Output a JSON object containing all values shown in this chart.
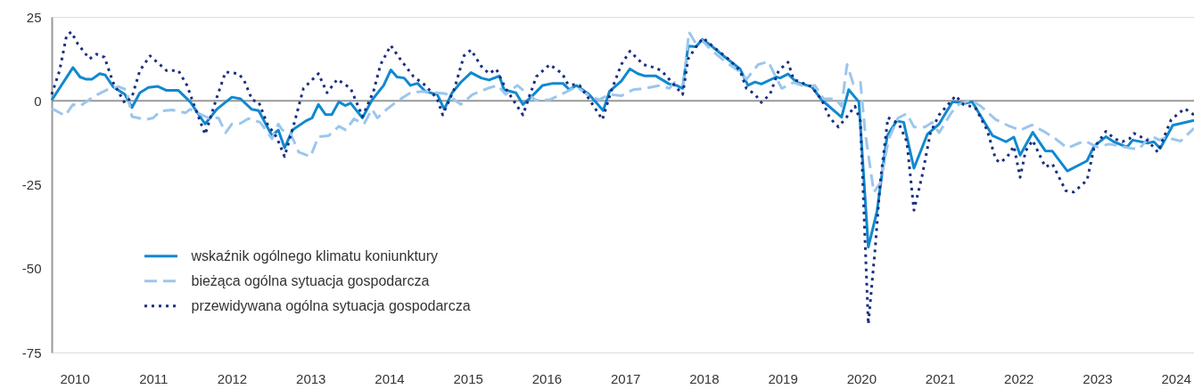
{
  "chart_data": {
    "type": "line",
    "xlim": [
      2010,
      2024.52
    ],
    "ylim": [
      -75,
      25
    ],
    "xticks": [
      {
        "value": 2010.29,
        "label": "2010"
      },
      {
        "value": 2011.29,
        "label": "2011"
      },
      {
        "value": 2012.29,
        "label": "2012"
      },
      {
        "value": 2013.29,
        "label": "2013"
      },
      {
        "value": 2014.29,
        "label": "2014"
      },
      {
        "value": 2015.29,
        "label": "2015"
      },
      {
        "value": 2016.29,
        "label": "2016"
      },
      {
        "value": 2017.29,
        "label": "2017"
      },
      {
        "value": 2018.29,
        "label": "2018"
      },
      {
        "value": 2019.29,
        "label": "2019"
      },
      {
        "value": 2020.29,
        "label": "2020"
      },
      {
        "value": 2021.29,
        "label": "2021"
      },
      {
        "value": 2022.29,
        "label": "2022"
      },
      {
        "value": 2023.29,
        "label": "2023"
      },
      {
        "value": 2024.29,
        "label": "2024"
      }
    ],
    "yticks": [
      -75,
      -50,
      -25,
      0,
      25
    ],
    "legend": "bottom left",
    "ref_lines": [
      {
        "axis": "y",
        "value": 0,
        "color": "#999999"
      }
    ],
    "series": [
      {
        "name": "wskaźnik ogólnego klimatu koniunktury",
        "color": "#1089cf",
        "line_style": "solid",
        "x": [
          2010.0,
          2010.27,
          2010.36,
          2010.44,
          2010.51,
          2010.61,
          2010.68,
          2010.78,
          2010.93,
          2011.02,
          2011.12,
          2011.23,
          2011.35,
          2011.46,
          2011.61,
          2011.76,
          2011.95,
          2012.1,
          2012.29,
          2012.4,
          2012.54,
          2012.63,
          2012.8,
          2012.88,
          2012.96,
          2013.06,
          2013.23,
          2013.31,
          2013.39,
          2013.48,
          2013.56,
          2013.65,
          2013.73,
          2013.8,
          2013.95,
          2014.07,
          2014.22,
          2014.31,
          2014.39,
          2014.48,
          2014.56,
          2014.65,
          2014.75,
          2014.9,
          2014.99,
          2015.09,
          2015.2,
          2015.33,
          2015.46,
          2015.56,
          2015.69,
          2015.75,
          2015.9,
          2015.99,
          2016.11,
          2016.24,
          2016.37,
          2016.5,
          2016.58,
          2016.67,
          2016.83,
          2017.01,
          2017.09,
          2017.24,
          2017.35,
          2017.45,
          2017.54,
          2017.68,
          2017.85,
          2017.94,
          2018.02,
          2018.09,
          2018.19,
          2018.27,
          2018.38,
          2018.56,
          2018.75,
          2018.85,
          2018.94,
          2019.02,
          2019.21,
          2019.26,
          2019.36,
          2019.47,
          2019.66,
          2019.79,
          2020.04,
          2020.13,
          2020.26,
          2020.38,
          2020.49,
          2020.62,
          2020.74,
          2020.83,
          2020.96,
          2021.13,
          2021.28,
          2021.45,
          2021.62,
          2021.7,
          2021.96,
          2022.13,
          2022.23,
          2022.31,
          2022.47,
          2022.63,
          2022.72,
          2022.91,
          2023.16,
          2023.25,
          2023.4,
          2023.5,
          2023.67,
          2023.74,
          2023.93,
          2024.01,
          2024.09,
          2024.25,
          2024.52
        ],
        "values": [
          0.2,
          9.9,
          7.1,
          6.4,
          6.4,
          8.1,
          7.7,
          4.2,
          1.9,
          -2.0,
          2.4,
          4.0,
          4.3,
          3.1,
          3.1,
          -0.3,
          -6.9,
          -2.5,
          1.1,
          0.6,
          -2.5,
          -2.9,
          -10.4,
          -8.7,
          -14.0,
          -8.7,
          -6.0,
          -5.1,
          -1.1,
          -4.1,
          -4.1,
          -0.3,
          -1.4,
          -0.7,
          -5.1,
          0.2,
          4.6,
          9.2,
          7.1,
          6.8,
          4.6,
          5.2,
          2.8,
          1.9,
          -2.5,
          2.4,
          5.5,
          8.4,
          6.8,
          6.2,
          7.4,
          3.3,
          2.4,
          -1.1,
          1.5,
          4.6,
          5.2,
          5.2,
          3.3,
          4.6,
          1.9,
          -2.9,
          2.8,
          5.9,
          9.5,
          8.1,
          7.4,
          7.4,
          5.0,
          4.6,
          3.7,
          16.3,
          16.1,
          18.3,
          16.5,
          13.0,
          9.5,
          4.6,
          5.6,
          5.0,
          7.1,
          6.8,
          8.0,
          5.5,
          4.2,
          0.2,
          -4.9,
          3.3,
          -0.3,
          -43.6,
          -33.0,
          -10.4,
          -6.0,
          -6.4,
          -20.1,
          -10.0,
          -6.9,
          -0.3,
          -0.7,
          -0.3,
          -10.4,
          -12.2,
          -10.8,
          -16.2,
          -9.4,
          -14.9,
          -15.0,
          -20.9,
          -17.9,
          -13.5,
          -10.7,
          -12.2,
          -13.8,
          -11.7,
          -12.6,
          -12.2,
          -14.2,
          -7.3,
          -5.8
        ]
      },
      {
        "name": "bieżąca ogólna sytuacja gospodarcza",
        "color": "#9cc6ec",
        "line_style": "dashed",
        "x": [
          2010.0,
          2010.17,
          2010.27,
          2010.36,
          2010.55,
          2010.74,
          2010.85,
          2010.95,
          2011.02,
          2011.19,
          2011.29,
          2011.38,
          2011.53,
          2011.7,
          2011.76,
          2011.99,
          2012.12,
          2012.21,
          2012.29,
          2012.4,
          2012.5,
          2012.65,
          2012.8,
          2012.88,
          2012.93,
          2013.03,
          2013.14,
          2013.29,
          2013.39,
          2013.52,
          2013.65,
          2013.74,
          2013.84,
          2013.97,
          2014.07,
          2014.14,
          2014.26,
          2014.41,
          2014.56,
          2014.71,
          2014.9,
          2015.01,
          2015.2,
          2015.35,
          2015.54,
          2015.67,
          2015.77,
          2015.92,
          2016.01,
          2016.15,
          2016.33,
          2016.52,
          2016.67,
          2016.83,
          2016.96,
          2017.09,
          2017.24,
          2017.39,
          2017.54,
          2017.73,
          2017.85,
          2017.92,
          2018.03,
          2018.1,
          2018.19,
          2018.27,
          2018.38,
          2018.56,
          2018.75,
          2018.83,
          2018.98,
          2019.11,
          2019.21,
          2019.28,
          2019.43,
          2019.58,
          2019.7,
          2019.81,
          2019.96,
          2020.04,
          2020.11,
          2020.19,
          2020.28,
          2020.34,
          2020.45,
          2020.53,
          2020.64,
          2020.76,
          2020.87,
          2020.96,
          2021.1,
          2021.19,
          2021.28,
          2021.44,
          2021.53,
          2021.68,
          2021.81,
          2022.0,
          2022.15,
          2022.31,
          2022.46,
          2022.61,
          2022.76,
          2022.91,
          2023.06,
          2023.14,
          2023.29,
          2023.44,
          2023.59,
          2023.7,
          2023.82,
          2023.97,
          2024.08,
          2024.16,
          2024.35,
          2024.52
        ],
        "values": [
          -2.3,
          -4.4,
          -1.1,
          -1.6,
          1.5,
          3.7,
          4.2,
          3.3,
          -4.7,
          -5.6,
          -5.1,
          -3.1,
          -2.7,
          -3.6,
          -2.5,
          -5.1,
          -5.1,
          -9.5,
          -6.9,
          -6.7,
          -5.3,
          -6.4,
          -11.3,
          -6.9,
          -8.7,
          -9.5,
          -15.3,
          -16.6,
          -10.7,
          -10.4,
          -7.6,
          -8.7,
          -5.4,
          -6.9,
          -2.5,
          -5.1,
          -2.5,
          0.2,
          2.4,
          2.8,
          2.4,
          2.1,
          -1.1,
          1.9,
          3.7,
          4.6,
          1.9,
          4.6,
          2.8,
          0.2,
          0.3,
          2.4,
          4.2,
          1.5,
          0.3,
          1.9,
          1.5,
          3.3,
          3.7,
          4.6,
          3.7,
          5.5,
          4.6,
          20.5,
          17.0,
          17.9,
          15.2,
          11.7,
          8.6,
          6.4,
          10.8,
          11.7,
          6.8,
          3.7,
          5.5,
          4.2,
          4.6,
          0.6,
          0.6,
          -1.6,
          10.8,
          5.0,
          5.5,
          -9.5,
          -27.2,
          -24.6,
          -11.3,
          -5.1,
          -3.8,
          -7.8,
          -7.8,
          -6.4,
          -9.5,
          -3.4,
          -1.1,
          0.2,
          -1.6,
          -5.6,
          -7.3,
          -8.8,
          -7.2,
          -9.1,
          -11.3,
          -14.1,
          -12.6,
          -12.0,
          -13.8,
          -12.9,
          -13.5,
          -14.1,
          -14.4,
          -10.4,
          -11.7,
          -10.9,
          -12.0,
          -8.2
        ]
      },
      {
        "name": "przewidywana ogólna sytuacja gospodarcza",
        "color": "#1b2f80",
        "line_style": "dotted",
        "x": [
          2010.0,
          2010.1,
          2010.19,
          2010.25,
          2010.33,
          2010.48,
          2010.57,
          2010.67,
          2010.78,
          2010.93,
          2011.02,
          2011.12,
          2011.25,
          2011.46,
          2011.61,
          2011.72,
          2011.8,
          2011.95,
          2012.1,
          2012.21,
          2012.37,
          2012.44,
          2012.55,
          2012.63,
          2012.74,
          2012.86,
          2012.96,
          2013.08,
          2013.2,
          2013.39,
          2013.5,
          2013.63,
          2013.8,
          2013.95,
          2014.09,
          2014.18,
          2014.31,
          2014.44,
          2014.6,
          2014.75,
          2014.9,
          2014.97,
          2015.12,
          2015.24,
          2015.33,
          2015.46,
          2015.56,
          2015.65,
          2015.77,
          2015.99,
          2016.16,
          2016.33,
          2016.49,
          2016.56,
          2016.71,
          2016.84,
          2017.0,
          2017.11,
          2017.24,
          2017.35,
          2017.52,
          2017.66,
          2017.75,
          2017.85,
          2018.02,
          2018.09,
          2018.19,
          2018.28,
          2018.41,
          2018.6,
          2018.75,
          2018.83,
          2018.94,
          2019.02,
          2019.13,
          2019.24,
          2019.36,
          2019.43,
          2019.66,
          2019.79,
          2019.89,
          2020.0,
          2020.11,
          2020.21,
          2020.28,
          2020.38,
          2020.47,
          2020.53,
          2020.63,
          2020.77,
          2020.87,
          2020.96,
          2021.06,
          2021.17,
          2021.28,
          2021.49,
          2021.59,
          2021.74,
          2021.89,
          2022.0,
          2022.06,
          2022.15,
          2022.23,
          2022.31,
          2022.38,
          2022.47,
          2022.63,
          2022.72,
          2022.89,
          2022.99,
          2023.16,
          2023.25,
          2023.4,
          2023.51,
          2023.61,
          2023.7,
          2023.76,
          2023.93,
          2024.06,
          2024.23,
          2024.4,
          2024.52
        ],
        "values": [
          1.9,
          9.0,
          19.6,
          20.5,
          17.0,
          12.5,
          13.9,
          13.0,
          5.5,
          -0.7,
          1.1,
          9.0,
          13.4,
          9.0,
          9.0,
          4.6,
          -0.7,
          -10.0,
          1.1,
          8.6,
          8.1,
          6.4,
          0.2,
          -0.3,
          -6.9,
          -10.9,
          -16.6,
          -6.9,
          3.7,
          8.1,
          2.4,
          6.4,
          3.7,
          -4.7,
          2.8,
          10.8,
          16.5,
          12.1,
          7.2,
          4.6,
          0.6,
          -4.2,
          3.7,
          13.4,
          15.2,
          10.3,
          8.1,
          9.5,
          3.7,
          -4.2,
          7.2,
          10.8,
          8.1,
          5.0,
          4.6,
          0.2,
          -5.6,
          2.8,
          10.8,
          14.8,
          10.8,
          9.9,
          9.0,
          6.4,
          1.9,
          12.5,
          16.1,
          18.7,
          16.1,
          12.5,
          9.0,
          3.7,
          1.9,
          -0.5,
          1.9,
          9.0,
          11.5,
          6.4,
          4.2,
          0.2,
          -5.1,
          -7.8,
          -4.7,
          -1.6,
          -6.0,
          -66.6,
          -43.2,
          -24.6,
          -5.0,
          -6.9,
          -12.2,
          -32.6,
          -22.8,
          -9.5,
          -4.2,
          1.5,
          -1.1,
          -2.0,
          -8.7,
          -17.5,
          -18.4,
          -16.6,
          -13.5,
          -22.8,
          -14.9,
          -11.8,
          -19.7,
          -18.8,
          -26.8,
          -27.2,
          -23.7,
          -14.0,
          -9.1,
          -11.3,
          -12.2,
          -11.3,
          -9.7,
          -11.8,
          -15.3,
          -5.6,
          -2.3,
          -4.2
        ]
      }
    ]
  }
}
